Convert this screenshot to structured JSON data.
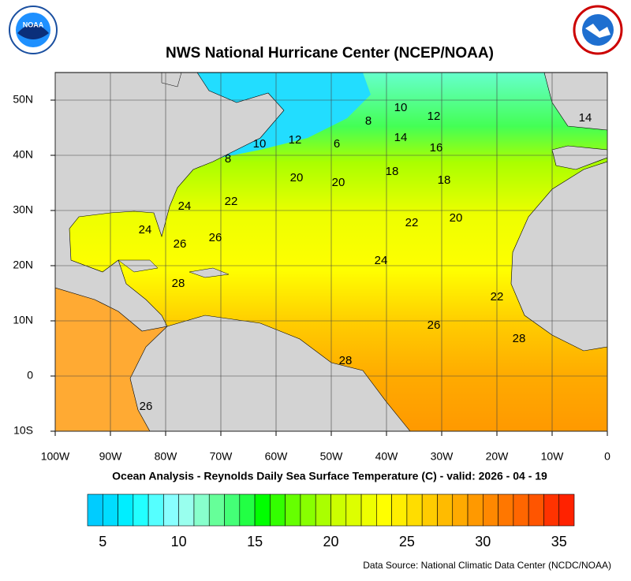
{
  "header": {
    "title": "NWS National Hurricane Center (NCEP/NOAA)",
    "logo_left": "NOAA"
  },
  "map": {
    "xlim": [
      -100,
      0
    ],
    "ylim": [
      -10,
      55
    ],
    "xticks": [
      {
        "value": -100,
        "label": "100W"
      },
      {
        "value": -90,
        "label": "90W"
      },
      {
        "value": -80,
        "label": "80W"
      },
      {
        "value": -70,
        "label": "70W"
      },
      {
        "value": -60,
        "label": "60W"
      },
      {
        "value": -50,
        "label": "50W"
      },
      {
        "value": -40,
        "label": "40W"
      },
      {
        "value": -30,
        "label": "30W"
      },
      {
        "value": -20,
        "label": "20W"
      },
      {
        "value": -10,
        "label": "10W"
      },
      0
    ],
    "yticks": [
      {
        "value": 50,
        "label": "50N"
      },
      {
        "value": 40,
        "label": "40N"
      },
      {
        "value": 30,
        "label": "30N"
      },
      {
        "value": 20,
        "label": "20N"
      },
      {
        "value": 10,
        "label": "10N"
      },
      0,
      {
        "value": -10,
        "label": "10S"
      }
    ],
    "grid": true,
    "contour_labels": [
      "10",
      "12",
      "14",
      "8",
      "14",
      "16",
      "10",
      "12",
      "6",
      "8",
      "18",
      "20",
      "20",
      "18",
      "24",
      "22",
      "20",
      "22",
      "24",
      "26",
      "26",
      "24",
      "28",
      "22",
      "26",
      "28",
      "28",
      "26"
    ]
  },
  "caption": "Ocean Analysis - Reynolds Daily Sea Surface Temperature (C) - valid: 2026 - 04 - 19",
  "colorbar": {
    "range": [
      4,
      36
    ],
    "ticks": [
      5,
      10,
      15,
      20,
      25,
      30,
      35
    ],
    "colors": [
      "#00ccff",
      "#00ddff",
      "#00eeff",
      "#22ffff",
      "#55ffff",
      "#88ffff",
      "#99ffee",
      "#88ffcc",
      "#66ff99",
      "#44ff77",
      "#22ff44",
      "#00ff00",
      "#33ff00",
      "#66ff00",
      "#88ff00",
      "#aaff00",
      "#ccff00",
      "#ddff00",
      "#eeff00",
      "#ffff00",
      "#ffee00",
      "#ffdd00",
      "#ffcc00",
      "#ffbb00",
      "#ffaa00",
      "#ff9900",
      "#ff8800",
      "#ff7700",
      "#ff6600",
      "#ff5500",
      "#ff3300",
      "#ff2200"
    ]
  },
  "source": "Data Source: National Climatic Data Center (NCDC/NOAA)"
}
